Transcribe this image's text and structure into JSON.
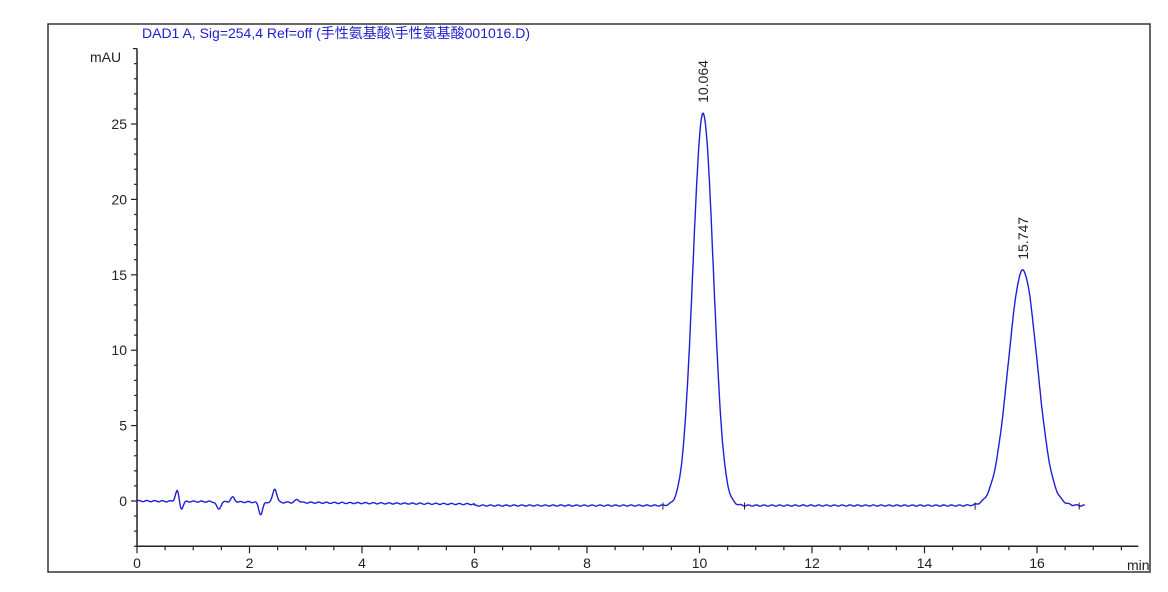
{
  "chart_data": {
    "type": "line",
    "title": "DAD1 A, Sig=254,4 Ref=off (手性氨基酸\\手性氨基酸001016.D)",
    "xlabel": "min",
    "ylabel": "mAU",
    "xlim": [
      0,
      17.8
    ],
    "ylim": [
      -3,
      30
    ],
    "x_ticks": [
      0,
      2,
      4,
      6,
      8,
      10,
      12,
      14,
      16
    ],
    "y_ticks": [
      0,
      5,
      10,
      15,
      20,
      25
    ],
    "grid": false,
    "series_color": "#1f1fd6",
    "trace_range": [
      0,
      16.85
    ],
    "baseline_end_value": -0.3,
    "peaks": [
      {
        "retention_time": 10.064,
        "label": "10.064",
        "height": 26.0,
        "start": 9.35,
        "end": 10.8
      },
      {
        "retention_time": 15.747,
        "label": "15.747",
        "height": 15.6,
        "start": 14.9,
        "end": 16.75
      }
    ],
    "early_disturbances": [
      {
        "x": 0.72,
        "y": 0.8
      },
      {
        "x": 0.78,
        "y": -0.6
      },
      {
        "x": 1.45,
        "y": -0.5
      },
      {
        "x": 1.7,
        "y": 0.3
      },
      {
        "x": 2.2,
        "y": -0.8
      },
      {
        "x": 2.45,
        "y": 0.9
      },
      {
        "x": 2.85,
        "y": 0.2
      }
    ]
  }
}
